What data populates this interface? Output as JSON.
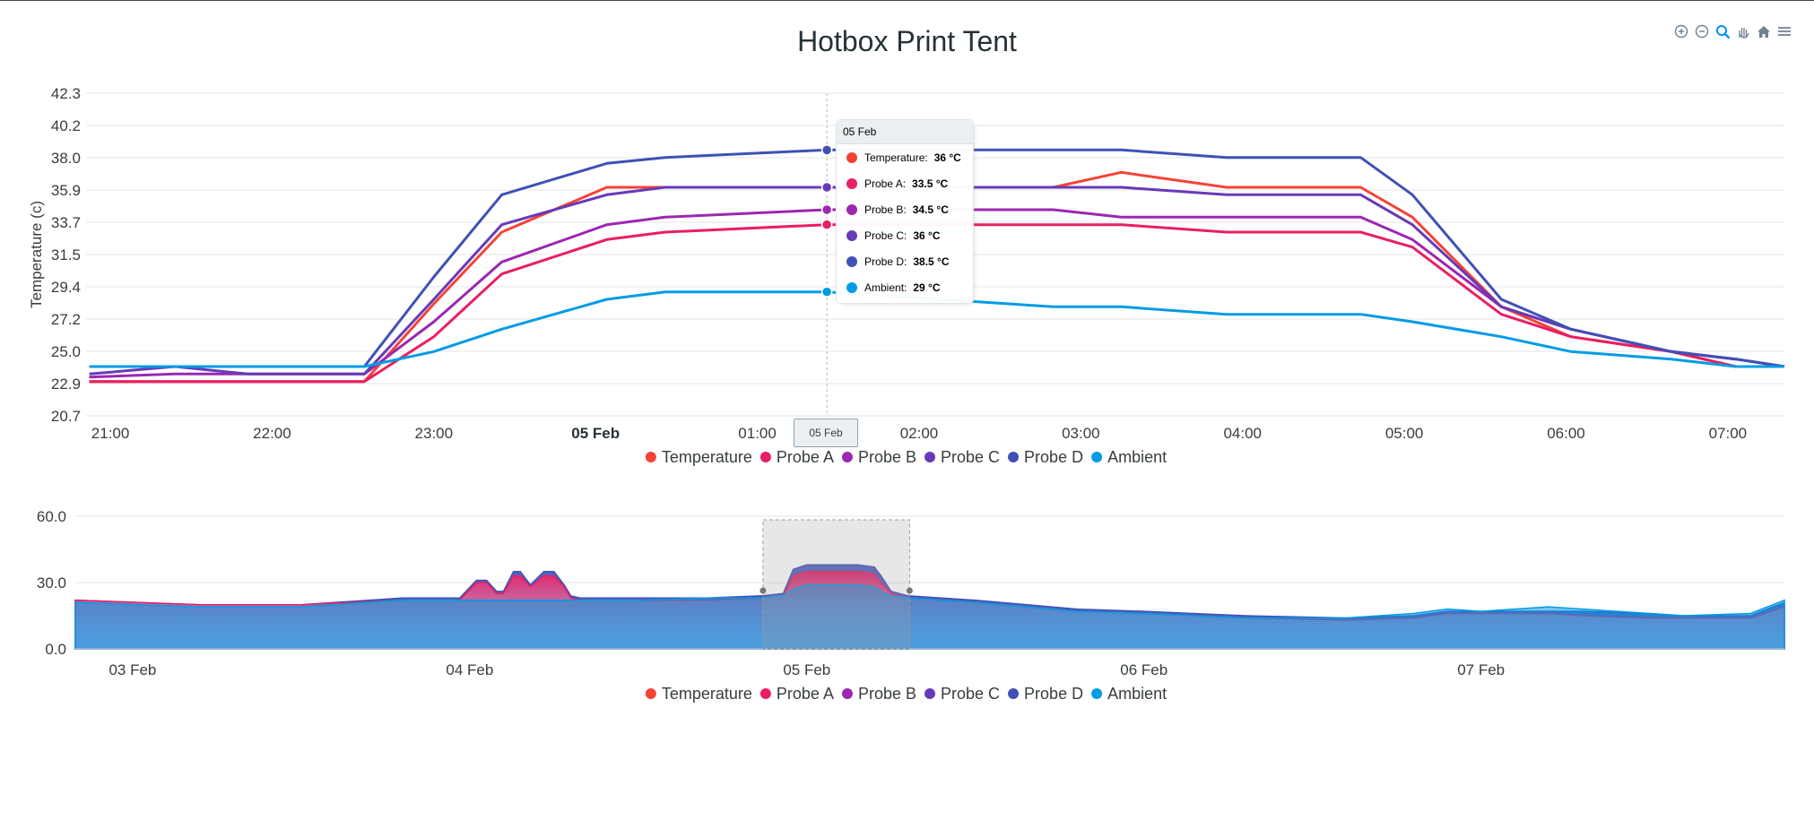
{
  "title": "Hotbox Print Tent",
  "toolbar": [
    {
      "icon": "zoom-in-icon"
    },
    {
      "icon": "zoom-out-icon"
    },
    {
      "icon": "selection-zoom-icon"
    },
    {
      "icon": "pan-hand-icon"
    },
    {
      "icon": "reset-home-icon"
    },
    {
      "icon": "menu-icon"
    }
  ],
  "colors": {
    "Temperature": "#f44336",
    "Probe A": "#e91e63",
    "Probe B": "#9c27b0",
    "Probe C": "#673ab7",
    "Probe D": "#3f51b5",
    "Ambient": "#039be5"
  },
  "tooltip": {
    "title": "05 Feb",
    "rows": [
      {
        "name": "Temperature:",
        "value": "36 °C",
        "color": "#f44336"
      },
      {
        "name": "Probe A:",
        "value": "33.5 °C",
        "color": "#e91e63"
      },
      {
        "name": "Probe B:",
        "value": "34.5 °C",
        "color": "#9c27b0"
      },
      {
        "name": "Probe C:",
        "value": "36 °C",
        "color": "#673ab7"
      },
      {
        "name": "Probe D:",
        "value": "38.5 °C",
        "color": "#3f51b5"
      },
      {
        "name": "Ambient:",
        "value": "29 °C",
        "color": "#039be5"
      }
    ]
  },
  "crosshair_label": "05 Feb",
  "chart_data": [
    {
      "type": "line",
      "title": "Hotbox Print Tent",
      "ylabel": "Temperature (c)",
      "ylim": [
        20.7,
        42.3
      ],
      "xlim_hours": [
        -3.15,
        7.35
      ],
      "yticks": [
        "42.3",
        "40.2",
        "38.0",
        "35.9",
        "33.7",
        "31.5",
        "29.4",
        "27.2",
        "25.0",
        "22.9",
        "20.7"
      ],
      "xticks": [
        {
          "h": -3,
          "label": "21:00",
          "bold": false
        },
        {
          "h": -2,
          "label": "22:00",
          "bold": false
        },
        {
          "h": -1,
          "label": "23:00",
          "bold": false
        },
        {
          "h": 0,
          "label": "05 Feb",
          "bold": true
        },
        {
          "h": 1,
          "label": "01:00",
          "bold": false
        },
        {
          "h": 2,
          "label": "02:00",
          "bold": false
        },
        {
          "h": 3,
          "label": "03:00",
          "bold": false
        },
        {
          "h": 4,
          "label": "04:00",
          "bold": false
        },
        {
          "h": 5,
          "label": "05:00",
          "bold": false
        },
        {
          "h": 6,
          "label": "06:00",
          "bold": false
        },
        {
          "h": 7,
          "label": "07:00",
          "bold": false
        }
      ],
      "crosshair_h": 1.43,
      "x": [
        -3.13,
        -2.6,
        -2.15,
        -1.43,
        -1.0,
        -0.58,
        0.07,
        0.43,
        1.43,
        2.83,
        3.25,
        3.9,
        4.73,
        5.05,
        5.6,
        6.03,
        6.65,
        7.05,
        7.35
      ],
      "legend": [
        "Temperature",
        "Probe A",
        "Probe B",
        "Probe C",
        "Probe D",
        "Ambient"
      ],
      "series": [
        {
          "name": "Temperature",
          "values": [
            23.0,
            23.0,
            23.0,
            23.0,
            28.2,
            33.0,
            36.0,
            36.0,
            36.0,
            36.0,
            37.0,
            36.0,
            36.0,
            34.0,
            28.0,
            26.0,
            25.0,
            24.0,
            24.0
          ]
        },
        {
          "name": "Probe A",
          "values": [
            23.0,
            23.0,
            23.0,
            23.0,
            26.0,
            30.2,
            32.5,
            33.0,
            33.5,
            33.5,
            33.5,
            33.0,
            33.0,
            32.0,
            27.5,
            26.0,
            25.0,
            24.0,
            24.0
          ]
        },
        {
          "name": "Probe B",
          "values": [
            23.3,
            23.5,
            23.5,
            23.5,
            27.0,
            31.0,
            33.5,
            34.0,
            34.5,
            34.5,
            34.0,
            34.0,
            34.0,
            32.5,
            28.0,
            26.5,
            25.0,
            24.5,
            24.0
          ]
        },
        {
          "name": "Probe C",
          "values": [
            23.5,
            24.0,
            23.5,
            23.5,
            28.5,
            33.5,
            35.5,
            36.0,
            36.0,
            36.0,
            36.0,
            35.5,
            35.5,
            33.5,
            28.0,
            26.5,
            25.0,
            24.5,
            24.0
          ]
        },
        {
          "name": "Probe D",
          "values": [
            24.0,
            24.0,
            24.0,
            24.0,
            30.0,
            35.5,
            37.6,
            38.0,
            38.5,
            38.5,
            38.5,
            38.0,
            38.0,
            35.5,
            28.5,
            26.5,
            25.0,
            24.5,
            24.0
          ]
        },
        {
          "name": "Ambient",
          "values": [
            24.0,
            24.0,
            24.0,
            24.0,
            25.0,
            26.5,
            28.5,
            29.0,
            29.0,
            28.0,
            28.0,
            27.5,
            27.5,
            27.0,
            26.0,
            25.0,
            24.5,
            24.0,
            24.0
          ]
        }
      ]
    },
    {
      "type": "area",
      "role": "brush-navigator",
      "ylim": [
        0.0,
        60.0
      ],
      "yticks": [
        "60.0",
        "30.0",
        "0.0"
      ],
      "xlim_days": [
        2.83,
        7.9
      ],
      "xticks": [
        {
          "d": 3,
          "label": "03 Feb"
        },
        {
          "d": 4,
          "label": "04 Feb"
        },
        {
          "d": 5,
          "label": "05 Feb"
        },
        {
          "d": 6,
          "label": "06 Feb"
        },
        {
          "d": 7,
          "label": "07 Feb"
        }
      ],
      "selection_days": [
        4.87,
        5.305
      ],
      "legend": [
        "Temperature",
        "Probe A",
        "Probe B",
        "Probe C",
        "Probe D",
        "Ambient"
      ],
      "x": [
        2.83,
        3.2,
        3.5,
        3.8,
        3.97,
        4.02,
        4.05,
        4.08,
        4.1,
        4.13,
        4.15,
        4.18,
        4.22,
        4.25,
        4.28,
        4.3,
        4.33,
        4.35,
        4.4,
        4.5,
        4.7,
        4.87,
        4.93,
        4.96,
        5.0,
        5.1,
        5.15,
        5.2,
        5.22,
        5.25,
        5.3,
        5.5,
        5.8,
        6.0,
        6.3,
        6.6,
        6.8,
        6.9,
        7.0,
        7.2,
        7.3,
        7.5,
        7.6,
        7.8,
        7.9
      ],
      "series": [
        {
          "name": "Probe D",
          "values": [
            22,
            20,
            20,
            23,
            23,
            31,
            31,
            26,
            26,
            35,
            35,
            29,
            35,
            35,
            29,
            24,
            23,
            23,
            23,
            23,
            23,
            24,
            25,
            36,
            38,
            38,
            38,
            37,
            33,
            26,
            24,
            22,
            18,
            17,
            15,
            14,
            15,
            17,
            17,
            17,
            17,
            16,
            15,
            15,
            21
          ]
        },
        {
          "name": "Probe A",
          "values": [
            22,
            20,
            20,
            22,
            22,
            30,
            30,
            25,
            25,
            33,
            33,
            28,
            33,
            33,
            28,
            23,
            22,
            22,
            22,
            22,
            22,
            23,
            24,
            33,
            35,
            35,
            35,
            34,
            30,
            25,
            23,
            21,
            17,
            16,
            14,
            13,
            14,
            16,
            16,
            16,
            15,
            14,
            14,
            14,
            19
          ]
        },
        {
          "name": "Ambient",
          "values": [
            21,
            19,
            19,
            22,
            22,
            22,
            22,
            22,
            22,
            22,
            22,
            22,
            22,
            22,
            22,
            22,
            22,
            22,
            22,
            22,
            23,
            23,
            24,
            27,
            29,
            29,
            29,
            28,
            26,
            24,
            23,
            21,
            17,
            16,
            14,
            14,
            16,
            18,
            17,
            19,
            18,
            16,
            15,
            16,
            22
          ]
        }
      ]
    }
  ]
}
